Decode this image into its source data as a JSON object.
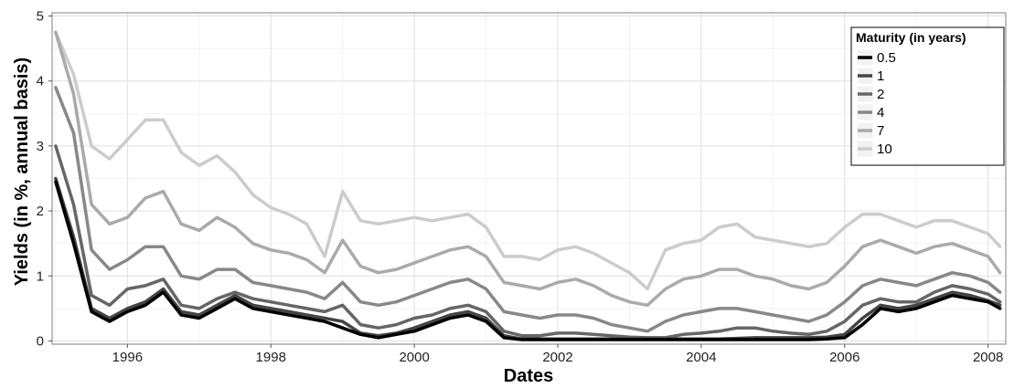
{
  "chart_data": {
    "type": "line",
    "xlabel": "Dates",
    "ylabel": "Yields (in %, annual basis)",
    "x_ticks": [
      "1996",
      "1998",
      "2000",
      "2002",
      "2004",
      "2006",
      "2008"
    ],
    "y_ticks": [
      "0",
      "1",
      "2",
      "3",
      "4",
      "5"
    ],
    "xlim": [
      "1995-01",
      "2008-03"
    ],
    "ylim": [
      0,
      5
    ],
    "grid": true,
    "legend_title": "Maturity (in years)",
    "legend_position": "top-right",
    "x": [
      "1995-01",
      "1995-04",
      "1995-07",
      "1995-10",
      "1996-01",
      "1996-04",
      "1996-07",
      "1996-10",
      "1997-01",
      "1997-04",
      "1997-07",
      "1997-10",
      "1998-01",
      "1998-04",
      "1998-07",
      "1998-10",
      "1999-01",
      "1999-04",
      "1999-07",
      "1999-10",
      "2000-01",
      "2000-04",
      "2000-07",
      "2000-10",
      "2001-01",
      "2001-04",
      "2001-07",
      "2001-10",
      "2002-01",
      "2002-04",
      "2002-07",
      "2002-10",
      "2003-01",
      "2003-04",
      "2003-07",
      "2003-10",
      "2004-01",
      "2004-04",
      "2004-07",
      "2004-10",
      "2005-01",
      "2005-04",
      "2005-07",
      "2005-10",
      "2006-01",
      "2006-04",
      "2006-07",
      "2006-10",
      "2007-01",
      "2007-04",
      "2007-07",
      "2007-10",
      "2008-01",
      "2008-03"
    ],
    "series": [
      {
        "name": "0.5",
        "color": "#000000",
        "values": [
          2.45,
          1.5,
          0.45,
          0.3,
          0.45,
          0.55,
          0.75,
          0.4,
          0.35,
          0.5,
          0.65,
          0.5,
          0.45,
          0.4,
          0.35,
          0.3,
          0.2,
          0.1,
          0.05,
          0.1,
          0.15,
          0.25,
          0.35,
          0.4,
          0.3,
          0.05,
          0.02,
          0.02,
          0.02,
          0.02,
          0.02,
          0.02,
          0.02,
          0.02,
          0.02,
          0.02,
          0.02,
          0.02,
          0.02,
          0.02,
          0.02,
          0.02,
          0.02,
          0.03,
          0.05,
          0.25,
          0.5,
          0.45,
          0.5,
          0.6,
          0.7,
          0.65,
          0.6,
          0.5
        ]
      },
      {
        "name": "1",
        "color": "#444444",
        "values": [
          2.5,
          1.6,
          0.5,
          0.35,
          0.5,
          0.6,
          0.8,
          0.45,
          0.4,
          0.55,
          0.7,
          0.55,
          0.5,
          0.45,
          0.4,
          0.35,
          0.3,
          0.12,
          0.08,
          0.12,
          0.2,
          0.3,
          0.4,
          0.45,
          0.35,
          0.08,
          0.03,
          0.03,
          0.03,
          0.03,
          0.03,
          0.03,
          0.03,
          0.03,
          0.03,
          0.03,
          0.03,
          0.03,
          0.04,
          0.05,
          0.05,
          0.05,
          0.05,
          0.06,
          0.1,
          0.35,
          0.55,
          0.5,
          0.55,
          0.65,
          0.75,
          0.7,
          0.62,
          0.55
        ]
      },
      {
        "name": "2",
        "color": "#666666",
        "values": [
          3.0,
          2.1,
          0.7,
          0.55,
          0.8,
          0.85,
          0.95,
          0.55,
          0.5,
          0.65,
          0.75,
          0.65,
          0.6,
          0.55,
          0.5,
          0.45,
          0.55,
          0.25,
          0.2,
          0.25,
          0.35,
          0.4,
          0.5,
          0.55,
          0.45,
          0.15,
          0.08,
          0.08,
          0.12,
          0.12,
          0.1,
          0.08,
          0.06,
          0.05,
          0.05,
          0.1,
          0.12,
          0.15,
          0.2,
          0.2,
          0.15,
          0.12,
          0.1,
          0.15,
          0.3,
          0.55,
          0.65,
          0.6,
          0.6,
          0.75,
          0.85,
          0.8,
          0.72,
          0.6
        ]
      },
      {
        "name": "4",
        "color": "#888888",
        "values": [
          3.9,
          3.2,
          1.4,
          1.1,
          1.25,
          1.45,
          1.45,
          1.0,
          0.95,
          1.1,
          1.1,
          0.9,
          0.85,
          0.8,
          0.75,
          0.65,
          0.9,
          0.6,
          0.55,
          0.6,
          0.7,
          0.8,
          0.9,
          0.95,
          0.8,
          0.45,
          0.4,
          0.35,
          0.4,
          0.4,
          0.35,
          0.25,
          0.2,
          0.15,
          0.3,
          0.4,
          0.45,
          0.5,
          0.5,
          0.45,
          0.4,
          0.35,
          0.3,
          0.4,
          0.6,
          0.85,
          0.95,
          0.9,
          0.85,
          0.95,
          1.05,
          1.0,
          0.9,
          0.75
        ]
      },
      {
        "name": "7",
        "color": "#aaaaaa",
        "values": [
          4.75,
          3.8,
          2.1,
          1.8,
          1.9,
          2.2,
          2.3,
          1.8,
          1.7,
          1.9,
          1.75,
          1.5,
          1.4,
          1.35,
          1.25,
          1.05,
          1.55,
          1.15,
          1.05,
          1.1,
          1.2,
          1.3,
          1.4,
          1.45,
          1.3,
          0.9,
          0.85,
          0.8,
          0.9,
          0.95,
          0.85,
          0.7,
          0.6,
          0.55,
          0.8,
          0.95,
          1.0,
          1.1,
          1.1,
          1.0,
          0.95,
          0.85,
          0.8,
          0.9,
          1.15,
          1.45,
          1.55,
          1.45,
          1.35,
          1.45,
          1.5,
          1.4,
          1.3,
          1.05
        ]
      },
      {
        "name": "10",
        "color": "#cccccc",
        "values": [
          4.75,
          4.1,
          3.0,
          2.8,
          3.1,
          3.4,
          3.4,
          2.9,
          2.7,
          2.85,
          2.6,
          2.25,
          2.05,
          1.95,
          1.8,
          1.3,
          2.3,
          1.85,
          1.8,
          1.85,
          1.9,
          1.85,
          1.9,
          1.95,
          1.75,
          1.3,
          1.3,
          1.25,
          1.4,
          1.45,
          1.35,
          1.2,
          1.05,
          0.8,
          1.4,
          1.5,
          1.55,
          1.75,
          1.8,
          1.6,
          1.55,
          1.5,
          1.45,
          1.5,
          1.75,
          1.95,
          1.95,
          1.85,
          1.75,
          1.85,
          1.85,
          1.75,
          1.65,
          1.45
        ]
      }
    ]
  }
}
